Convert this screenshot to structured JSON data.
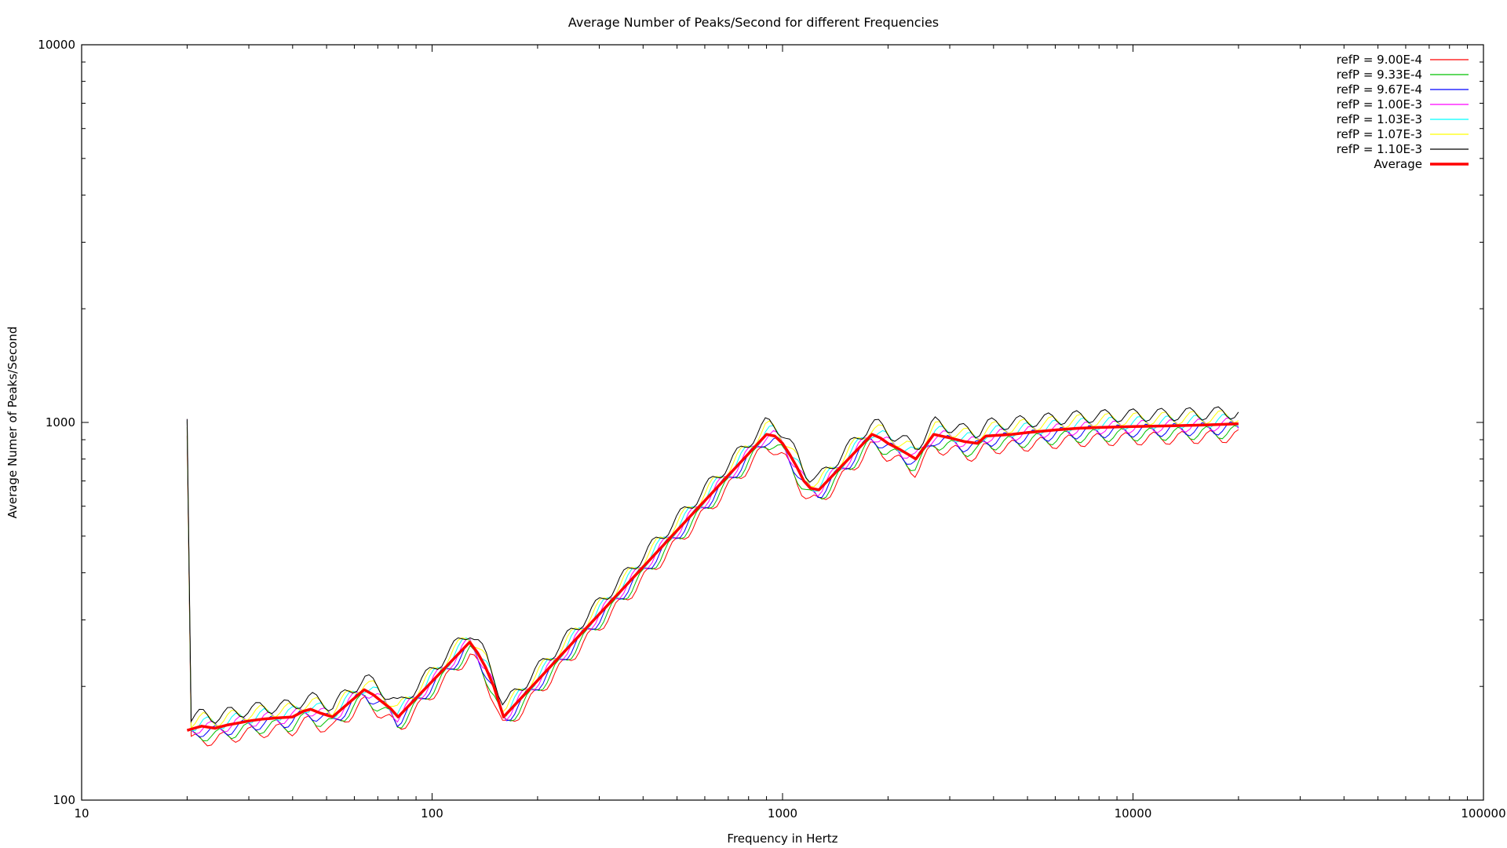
{
  "chart_data": {
    "type": "line",
    "title": "Average Number of Peaks/Second for different Frequencies",
    "xlabel": "Frequency in Hertz",
    "ylabel": "Average Numer of Peaks/Second",
    "x_scale": "log",
    "y_scale": "log",
    "xlim": [
      10,
      100000
    ],
    "ylim": [
      100,
      10000
    ],
    "x_ticks": [
      "10",
      "100",
      "1000",
      "10000",
      "100000"
    ],
    "y_ticks": [
      "100",
      "1000",
      "10000"
    ],
    "grid": false,
    "legend_position": "top-right",
    "series": [
      {
        "name": "refP = 9.00E-4",
        "color": "#ff0000",
        "factor": 0.928
      },
      {
        "name": "refP = 9.33E-4",
        "color": "#00c000",
        "factor": 0.952
      },
      {
        "name": "refP = 9.67E-4",
        "color": "#0000ff",
        "factor": 0.976
      },
      {
        "name": "refP = 1.00E-3",
        "color": "#ff00ff",
        "factor": 1.0
      },
      {
        "name": "refP = 1.03E-3",
        "color": "#00ffff",
        "factor": 1.024
      },
      {
        "name": "refP = 1.07E-3",
        "color": "#ffff00",
        "factor": 1.048
      },
      {
        "name": "refP = 1.10E-3",
        "color": "#000000",
        "factor": 1.072
      }
    ],
    "average": {
      "name": "Average",
      "color": "#ff0000",
      "points": [
        [
          20,
          153
        ],
        [
          22,
          157
        ],
        [
          24,
          155
        ],
        [
          26,
          158
        ],
        [
          28,
          160
        ],
        [
          30,
          162
        ],
        [
          33,
          164
        ],
        [
          36,
          165
        ],
        [
          40,
          166
        ],
        [
          43,
          172
        ],
        [
          45,
          174
        ],
        [
          48,
          170
        ],
        [
          52,
          166
        ],
        [
          64,
          196
        ],
        [
          68,
          190
        ],
        [
          72,
          182
        ],
        [
          76,
          175
        ],
        [
          80,
          166
        ],
        [
          128,
          262
        ],
        [
          135,
          245
        ],
        [
          142,
          225
        ],
        [
          150,
          200
        ],
        [
          160,
          166
        ],
        [
          900,
          930
        ],
        [
          950,
          920
        ],
        [
          1000,
          880
        ],
        [
          1050,
          820
        ],
        [
          1100,
          760
        ],
        [
          1150,
          700
        ],
        [
          1200,
          670
        ],
        [
          1270,
          663
        ],
        [
          1800,
          930
        ],
        [
          1900,
          910
        ],
        [
          2000,
          880
        ],
        [
          2150,
          850
        ],
        [
          2300,
          820
        ],
        [
          2400,
          800
        ],
        [
          2700,
          930
        ],
        [
          3000,
          910
        ],
        [
          3300,
          890
        ],
        [
          3600,
          880
        ],
        [
          3800,
          920
        ],
        [
          4500,
          930
        ],
        [
          5000,
          940
        ],
        [
          6000,
          955
        ],
        [
          7000,
          965
        ],
        [
          8000,
          970
        ],
        [
          10000,
          975
        ],
        [
          13000,
          980
        ],
        [
          16000,
          985
        ],
        [
          20000,
          992
        ]
      ]
    }
  }
}
